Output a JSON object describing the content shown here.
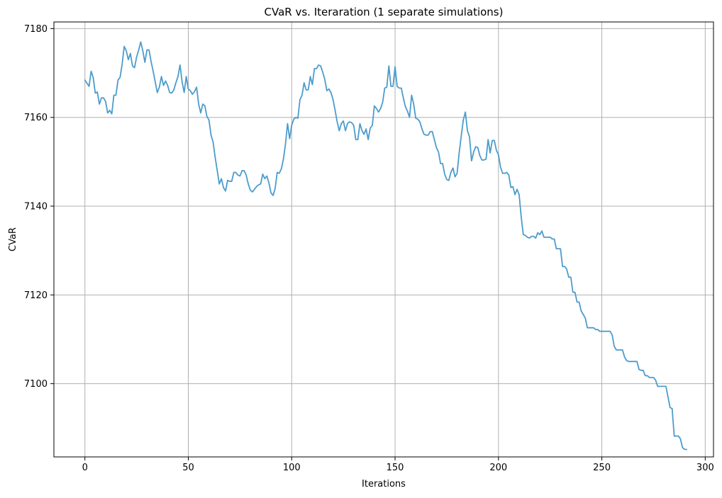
{
  "chart_data": {
    "type": "line",
    "title": "CVaR vs. Iteraration (1 separate simulations)",
    "xlabel": "Iterations",
    "ylabel": "CVaR",
    "xlim": [
      -15,
      304
    ],
    "ylim": [
      7083.5,
      7181.5
    ],
    "xticks": [
      0,
      50,
      100,
      150,
      200,
      250,
      300
    ],
    "yticks": [
      7100,
      7120,
      7140,
      7160,
      7180
    ],
    "grid": true,
    "series": [
      {
        "color": "#4c9ccc",
        "points": [
          [
            0,
            7168.4
          ],
          [
            2,
            7167.0
          ],
          [
            3,
            7170.4
          ],
          [
            4,
            7169.0
          ],
          [
            5,
            7165.5
          ],
          [
            6,
            7165.7
          ],
          [
            7,
            7163.0
          ],
          [
            8,
            7164.4
          ],
          [
            9,
            7164.4
          ],
          [
            10,
            7163.6
          ],
          [
            11,
            7161.0
          ],
          [
            12,
            7161.6
          ],
          [
            13,
            7160.8
          ],
          [
            14,
            7165.0
          ],
          [
            15,
            7165.0
          ],
          [
            16,
            7168.4
          ],
          [
            17,
            7169.0
          ],
          [
            18,
            7172.0
          ],
          [
            19,
            7176.0
          ],
          [
            20,
            7175.0
          ],
          [
            21,
            7173.0
          ],
          [
            22,
            7174.4
          ],
          [
            23,
            7171.6
          ],
          [
            24,
            7171.2
          ],
          [
            25,
            7173.6
          ],
          [
            26,
            7175.2
          ],
          [
            27,
            7177.0
          ],
          [
            28,
            7175.0
          ],
          [
            29,
            7172.4
          ],
          [
            30,
            7175.2
          ],
          [
            31,
            7175.2
          ],
          [
            32,
            7172.6
          ],
          [
            33,
            7170.4
          ],
          [
            34,
            7168.0
          ],
          [
            35,
            7165.6
          ],
          [
            36,
            7166.8
          ],
          [
            37,
            7169.2
          ],
          [
            38,
            7167.2
          ],
          [
            39,
            7168.2
          ],
          [
            40,
            7167.2
          ],
          [
            41,
            7165.6
          ],
          [
            42,
            7165.5
          ],
          [
            43,
            7166.2
          ],
          [
            44,
            7167.8
          ],
          [
            45,
            7169.2
          ],
          [
            46,
            7171.8
          ],
          [
            47,
            7168.0
          ],
          [
            48,
            7165.6
          ],
          [
            49,
            7169.2
          ],
          [
            50,
            7166.4
          ],
          [
            51,
            7166.0
          ],
          [
            52,
            7165.2
          ],
          [
            53,
            7165.8
          ],
          [
            54,
            7166.8
          ],
          [
            55,
            7163.0
          ],
          [
            56,
            7161.0
          ],
          [
            57,
            7163.0
          ],
          [
            58,
            7162.6
          ],
          [
            59,
            7160.2
          ],
          [
            60,
            7159.4
          ],
          [
            61,
            7156.0
          ],
          [
            62,
            7154.4
          ],
          [
            63,
            7151.0
          ],
          [
            64,
            7148.0
          ],
          [
            65,
            7145.0
          ],
          [
            66,
            7146.2
          ],
          [
            67,
            7144.2
          ],
          [
            68,
            7143.4
          ],
          [
            69,
            7145.8
          ],
          [
            70,
            7145.6
          ],
          [
            71,
            7145.6
          ],
          [
            72,
            7147.6
          ],
          [
            73,
            7147.6
          ],
          [
            74,
            7147.0
          ],
          [
            75,
            7146.8
          ],
          [
            76,
            7148.0
          ],
          [
            77,
            7148.0
          ],
          [
            78,
            7147.0
          ],
          [
            79,
            7145.0
          ],
          [
            80,
            7143.6
          ],
          [
            81,
            7143.2
          ],
          [
            82,
            7143.8
          ],
          [
            83,
            7144.4
          ],
          [
            84,
            7144.8
          ],
          [
            85,
            7145.0
          ],
          [
            86,
            7147.2
          ],
          [
            87,
            7146.2
          ],
          [
            88,
            7146.8
          ],
          [
            89,
            7145.2
          ],
          [
            90,
            7143.0
          ],
          [
            91,
            7142.4
          ],
          [
            92,
            7144.0
          ],
          [
            93,
            7147.6
          ],
          [
            94,
            7147.4
          ],
          [
            95,
            7148.4
          ],
          [
            96,
            7150.6
          ],
          [
            97,
            7154.0
          ],
          [
            98,
            7158.6
          ],
          [
            99,
            7155.2
          ],
          [
            100,
            7158.2
          ],
          [
            101,
            7159.6
          ],
          [
            102,
            7160.0
          ],
          [
            103,
            7159.8
          ],
          [
            104,
            7164.0
          ],
          [
            105,
            7165.0
          ],
          [
            106,
            7167.8
          ],
          [
            107,
            7166.2
          ],
          [
            108,
            7166.2
          ],
          [
            109,
            7169.2
          ],
          [
            110,
            7167.4
          ],
          [
            111,
            7171.0
          ],
          [
            112,
            7171.0
          ],
          [
            113,
            7171.8
          ],
          [
            114,
            7171.6
          ],
          [
            115,
            7170.2
          ],
          [
            116,
            7168.6
          ],
          [
            117,
            7166.0
          ],
          [
            118,
            7166.4
          ],
          [
            119,
            7165.6
          ],
          [
            120,
            7164.0
          ],
          [
            121,
            7161.6
          ],
          [
            122,
            7159.0
          ],
          [
            123,
            7157.0
          ],
          [
            124,
            7158.6
          ],
          [
            125,
            7159.2
          ],
          [
            126,
            7157.0
          ],
          [
            127,
            7158.6
          ],
          [
            128,
            7159.0
          ],
          [
            129,
            7158.8
          ],
          [
            130,
            7158.2
          ],
          [
            131,
            7155.0
          ],
          [
            132,
            7155.0
          ],
          [
            133,
            7158.6
          ],
          [
            134,
            7157.0
          ],
          [
            135,
            7156.2
          ],
          [
            136,
            7157.4
          ],
          [
            137,
            7155.0
          ],
          [
            138,
            7157.6
          ],
          [
            139,
            7158.2
          ],
          [
            140,
            7162.6
          ],
          [
            141,
            7162.0
          ],
          [
            142,
            7161.2
          ],
          [
            143,
            7162.0
          ],
          [
            144,
            7163.4
          ],
          [
            145,
            7166.6
          ],
          [
            146,
            7166.8
          ],
          [
            147,
            7171.6
          ],
          [
            148,
            7167.0
          ],
          [
            149,
            7167.0
          ],
          [
            150,
            7171.4
          ],
          [
            151,
            7167.0
          ],
          [
            152,
            7166.6
          ],
          [
            153,
            7166.6
          ],
          [
            154,
            7164.4
          ],
          [
            155,
            7162.4
          ],
          [
            156,
            7161.4
          ],
          [
            157,
            7160.0
          ],
          [
            158,
            7165.0
          ],
          [
            159,
            7163.0
          ],
          [
            160,
            7159.8
          ],
          [
            161,
            7159.6
          ],
          [
            162,
            7159.0
          ],
          [
            163,
            7157.4
          ],
          [
            164,
            7156.2
          ],
          [
            165,
            7156.0
          ],
          [
            166,
            7156.0
          ],
          [
            167,
            7156.8
          ],
          [
            168,
            7156.8
          ],
          [
            169,
            7155.0
          ],
          [
            170,
            7153.2
          ],
          [
            171,
            7152.2
          ],
          [
            172,
            7149.6
          ],
          [
            173,
            7149.6
          ],
          [
            174,
            7147.2
          ],
          [
            175,
            7146.0
          ],
          [
            176,
            7145.8
          ],
          [
            177,
            7147.6
          ],
          [
            178,
            7148.6
          ],
          [
            179,
            7146.6
          ],
          [
            180,
            7147.4
          ],
          [
            181,
            7152.0
          ],
          [
            182,
            7155.8
          ],
          [
            183,
            7159.4
          ],
          [
            184,
            7161.2
          ],
          [
            185,
            7157.0
          ],
          [
            186,
            7155.6
          ],
          [
            187,
            7150.2
          ],
          [
            188,
            7152.2
          ],
          [
            189,
            7153.4
          ],
          [
            190,
            7153.2
          ],
          [
            191,
            7151.4
          ],
          [
            192,
            7150.4
          ],
          [
            193,
            7150.4
          ],
          [
            194,
            7150.6
          ],
          [
            195,
            7155.0
          ],
          [
            196,
            7152.0
          ],
          [
            197,
            7154.8
          ],
          [
            198,
            7154.8
          ],
          [
            199,
            7152.6
          ],
          [
            200,
            7151.6
          ],
          [
            201,
            7148.8
          ],
          [
            202,
            7147.4
          ],
          [
            203,
            7147.4
          ],
          [
            204,
            7147.6
          ],
          [
            205,
            7147.0
          ],
          [
            206,
            7144.2
          ],
          [
            207,
            7144.4
          ],
          [
            208,
            7142.6
          ],
          [
            209,
            7143.8
          ],
          [
            210,
            7142.6
          ],
          [
            211,
            7137.6
          ],
          [
            212,
            7133.6
          ],
          [
            213,
            7133.4
          ],
          [
            214,
            7133.0
          ],
          [
            215,
            7132.8
          ],
          [
            216,
            7133.2
          ],
          [
            217,
            7133.2
          ],
          [
            218,
            7132.8
          ],
          [
            219,
            7134.0
          ],
          [
            220,
            7133.6
          ],
          [
            221,
            7134.4
          ],
          [
            222,
            7133.0
          ],
          [
            223,
            7133.0
          ],
          [
            224,
            7133.0
          ],
          [
            225,
            7133.0
          ],
          [
            226,
            7132.6
          ],
          [
            227,
            7132.6
          ],
          [
            228,
            7130.4
          ],
          [
            229,
            7130.4
          ],
          [
            230,
            7130.4
          ],
          [
            231,
            7126.4
          ],
          [
            232,
            7126.4
          ],
          [
            233,
            7125.8
          ],
          [
            234,
            7124.0
          ],
          [
            235,
            7124.0
          ],
          [
            236,
            7120.6
          ],
          [
            237,
            7120.6
          ],
          [
            238,
            7118.4
          ],
          [
            239,
            7118.4
          ],
          [
            240,
            7116.4
          ],
          [
            241,
            7115.6
          ],
          [
            242,
            7114.8
          ],
          [
            243,
            7112.6
          ],
          [
            244,
            7112.6
          ],
          [
            245,
            7112.6
          ],
          [
            246,
            7112.6
          ],
          [
            247,
            7112.2
          ],
          [
            248,
            7112.2
          ],
          [
            249,
            7111.8
          ],
          [
            250,
            7111.8
          ],
          [
            251,
            7111.8
          ],
          [
            252,
            7111.8
          ],
          [
            253,
            7111.8
          ],
          [
            254,
            7111.8
          ],
          [
            255,
            7111.0
          ],
          [
            256,
            7108.4
          ],
          [
            257,
            7107.6
          ],
          [
            258,
            7107.6
          ],
          [
            259,
            7107.6
          ],
          [
            260,
            7107.6
          ],
          [
            261,
            7106.0
          ],
          [
            262,
            7105.2
          ],
          [
            263,
            7105.0
          ],
          [
            264,
            7105.0
          ],
          [
            265,
            7105.0
          ],
          [
            266,
            7105.0
          ],
          [
            267,
            7105.0
          ],
          [
            268,
            7103.2
          ],
          [
            269,
            7103.0
          ],
          [
            270,
            7103.0
          ],
          [
            271,
            7101.8
          ],
          [
            272,
            7101.8
          ],
          [
            273,
            7101.4
          ],
          [
            274,
            7101.4
          ],
          [
            275,
            7101.4
          ],
          [
            276,
            7100.8
          ],
          [
            277,
            7099.4
          ],
          [
            278,
            7099.4
          ],
          [
            279,
            7099.4
          ],
          [
            280,
            7099.4
          ],
          [
            281,
            7099.4
          ],
          [
            282,
            7097.0
          ],
          [
            283,
            7094.6
          ],
          [
            284,
            7094.4
          ],
          [
            285,
            7088.2
          ],
          [
            286,
            7088.2
          ],
          [
            287,
            7088.2
          ],
          [
            288,
            7087.6
          ],
          [
            289,
            7085.6
          ],
          [
            290,
            7085.2
          ],
          [
            291,
            7085.2
          ]
        ]
      }
    ]
  }
}
